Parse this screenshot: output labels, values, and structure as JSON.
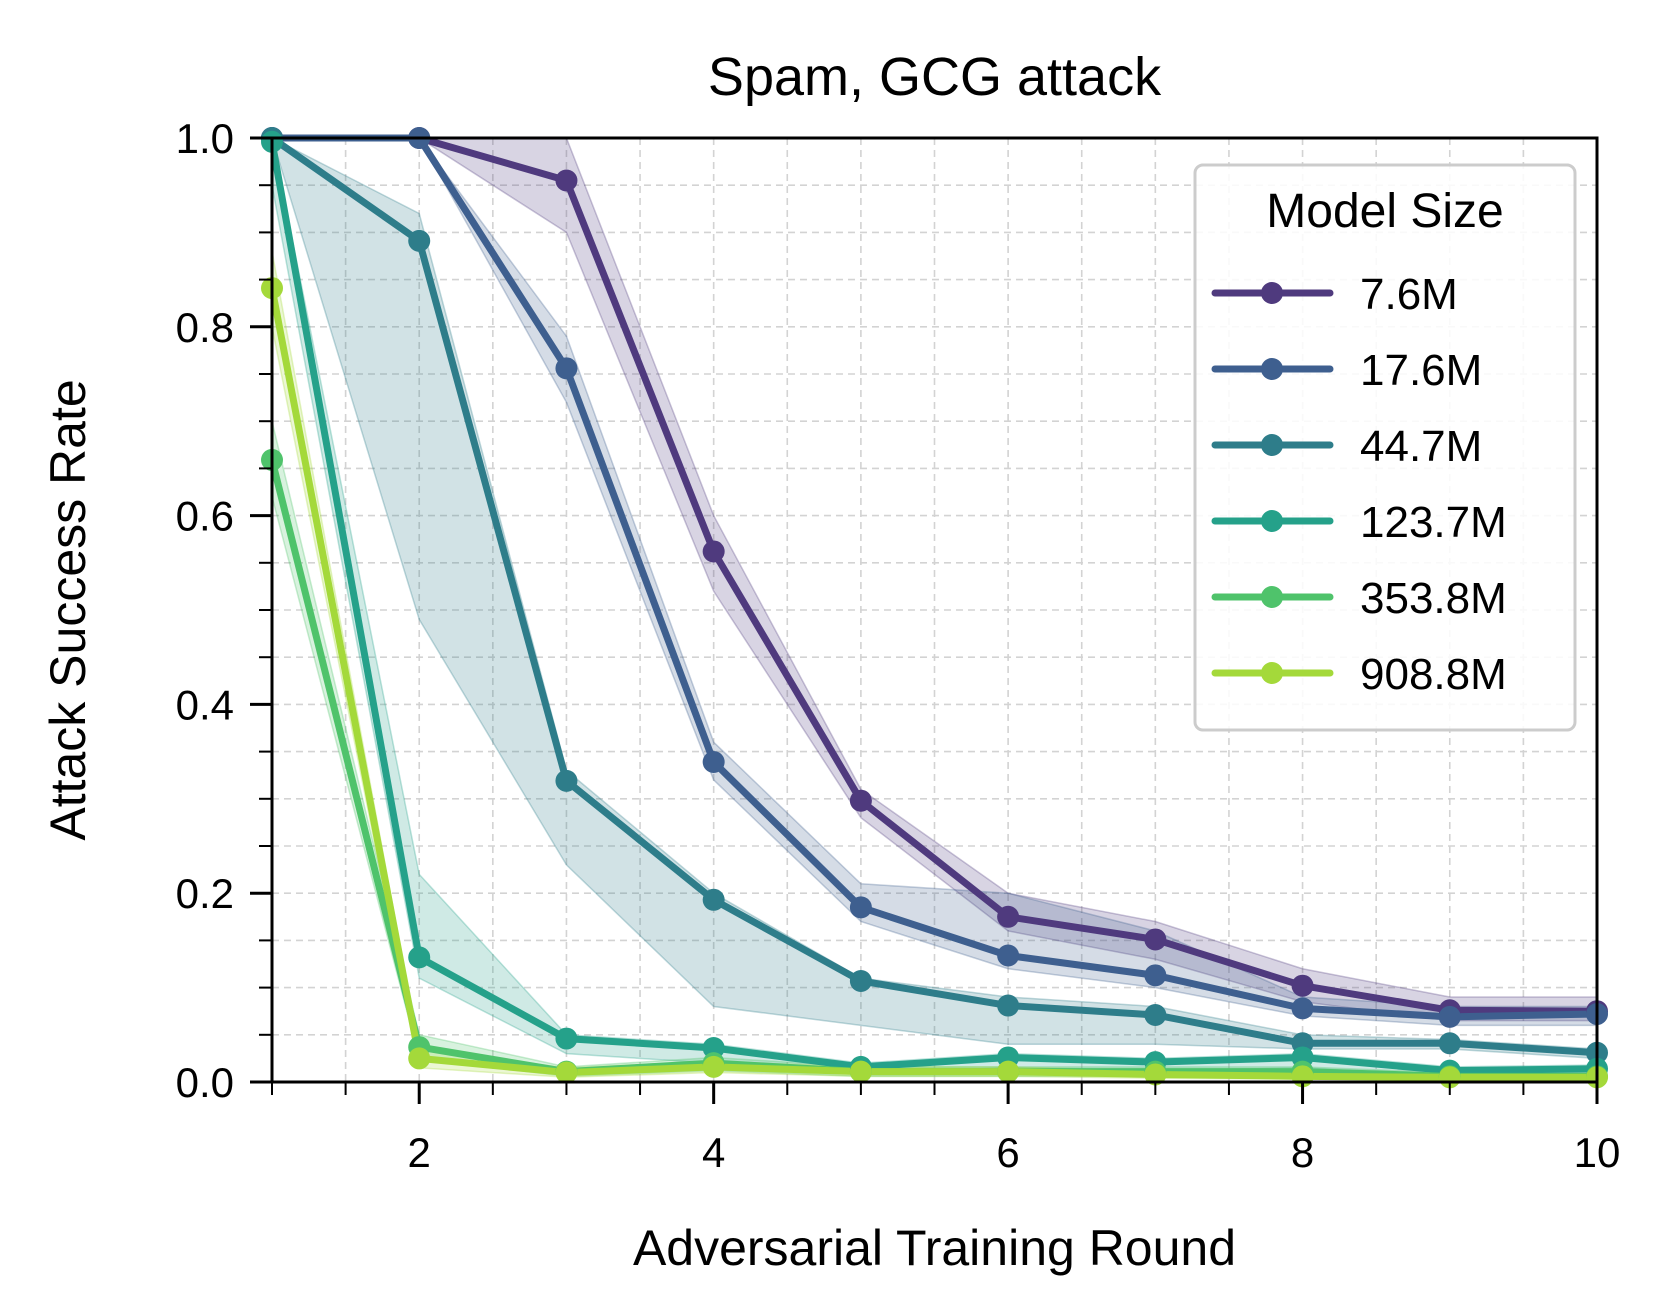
{
  "chart_data": {
    "type": "line",
    "title": "Spam, GCG attack",
    "xlabel": "Adversarial Training Round",
    "ylabel": "Attack Success Rate",
    "xlim": [
      1,
      10
    ],
    "ylim": [
      0,
      1.0
    ],
    "xticks": [
      2,
      4,
      6,
      8,
      10
    ],
    "xtick_labels": [
      "2",
      "4",
      "6",
      "8",
      "10"
    ],
    "yticks": [
      0.0,
      0.2,
      0.4,
      0.6,
      0.8,
      1.0
    ],
    "ytick_labels": [
      "0.0",
      "0.2",
      "0.4",
      "0.6",
      "0.8",
      "1.0"
    ],
    "grid": true,
    "legend": {
      "title": "Model Size",
      "placement": "top-right"
    },
    "x": [
      1,
      2,
      3,
      4,
      5,
      6,
      7,
      8,
      9,
      10
    ],
    "series": [
      {
        "name": "7.6M",
        "color": "#4f3a7e",
        "values": [
          1.0,
          1.0,
          0.955,
          0.562,
          0.298,
          0.175,
          0.151,
          0.102,
          0.076,
          0.075
        ],
        "lower": [
          1.0,
          1.0,
          0.9,
          0.52,
          0.28,
          0.16,
          0.13,
          0.085,
          0.065,
          0.065
        ],
        "upper": [
          1.0,
          1.0,
          1.0,
          0.6,
          0.31,
          0.2,
          0.17,
          0.12,
          0.09,
          0.09
        ]
      },
      {
        "name": "17.6M",
        "color": "#3e5f8f",
        "values": [
          1.0,
          1.0,
          0.756,
          0.339,
          0.185,
          0.134,
          0.113,
          0.078,
          0.069,
          0.072
        ],
        "lower": [
          1.0,
          1.0,
          0.72,
          0.32,
          0.17,
          0.12,
          0.1,
          0.07,
          0.06,
          0.06
        ],
        "upper": [
          1.0,
          1.0,
          0.79,
          0.36,
          0.21,
          0.2,
          0.16,
          0.09,
          0.08,
          0.08
        ]
      },
      {
        "name": "44.7M",
        "color": "#2e7d8a",
        "values": [
          1.0,
          0.891,
          0.319,
          0.193,
          0.107,
          0.081,
          0.071,
          0.041,
          0.041,
          0.031
        ],
        "lower": [
          1.0,
          0.49,
          0.23,
          0.08,
          0.06,
          0.04,
          0.04,
          0.035,
          0.035,
          0.025
        ],
        "upper": [
          1.0,
          0.92,
          0.33,
          0.2,
          0.11,
          0.09,
          0.08,
          0.05,
          0.045,
          0.035
        ]
      },
      {
        "name": "123.7M",
        "color": "#25a18a",
        "values": [
          0.996,
          0.132,
          0.046,
          0.036,
          0.016,
          0.026,
          0.021,
          0.026,
          0.012,
          0.014
        ],
        "lower": [
          0.95,
          0.11,
          0.03,
          0.02,
          0.01,
          0.015,
          0.012,
          0.015,
          0.006,
          0.008
        ],
        "upper": [
          1.0,
          0.22,
          0.05,
          0.04,
          0.02,
          0.03,
          0.025,
          0.03,
          0.016,
          0.018
        ]
      },
      {
        "name": "353.8M",
        "color": "#4fc36b",
        "values": [
          0.659,
          0.037,
          0.011,
          0.02,
          0.011,
          0.011,
          0.011,
          0.011,
          0.006,
          0.006
        ],
        "lower": [
          0.62,
          0.025,
          0.006,
          0.012,
          0.006,
          0.006,
          0.006,
          0.006,
          0.003,
          0.003
        ],
        "upper": [
          0.7,
          0.05,
          0.016,
          0.026,
          0.016,
          0.016,
          0.016,
          0.016,
          0.01,
          0.01
        ]
      },
      {
        "name": "908.8M",
        "color": "#a4d93a",
        "values": [
          0.841,
          0.025,
          0.01,
          0.016,
          0.011,
          0.011,
          0.008,
          0.006,
          0.005,
          0.005
        ],
        "lower": [
          0.8,
          0.015,
          0.005,
          0.01,
          0.006,
          0.006,
          0.004,
          0.003,
          0.002,
          0.002
        ],
        "upper": [
          0.88,
          0.035,
          0.015,
          0.022,
          0.016,
          0.016,
          0.012,
          0.01,
          0.008,
          0.008
        ]
      }
    ]
  }
}
